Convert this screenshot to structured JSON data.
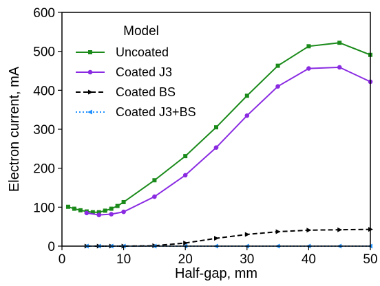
{
  "chart_data": {
    "type": "line",
    "xlabel": "Half-gap, mm",
    "ylabel": "Electron current, mA",
    "xlim": [
      0,
      50
    ],
    "ylim": [
      0,
      600
    ],
    "xticks": [
      "0",
      "10",
      "20",
      "30",
      "40",
      "50"
    ],
    "yticks": [
      "0",
      "100",
      "200",
      "300",
      "400",
      "500",
      "600"
    ],
    "grid": false,
    "legend": {
      "title": "Model",
      "placement": "top-left"
    },
    "series": [
      {
        "name": "Uncoated",
        "color": "#1a8a1a",
        "line_style": "solid",
        "marker": "square",
        "x": [
          1,
          2,
          3,
          4,
          5,
          6,
          7,
          8,
          9,
          10,
          15,
          20,
          25,
          30,
          35,
          40,
          45,
          50
        ],
        "y": [
          101,
          96,
          92,
          89,
          87,
          87,
          91,
          96,
          103,
          113,
          169,
          231,
          305,
          386,
          463,
          513,
          522,
          491
        ]
      },
      {
        "name": "Coated J3",
        "color": "#8a2be2",
        "line_style": "solid",
        "marker": "circle",
        "x": [
          4,
          6,
          8,
          10,
          15,
          20,
          25,
          30,
          35,
          40,
          45,
          50
        ],
        "y": [
          85,
          80,
          82,
          88,
          127,
          182,
          253,
          335,
          410,
          456,
          459,
          422
        ]
      },
      {
        "name": "Coated BS",
        "color": "#000000",
        "line_style": "dashed",
        "marker": "triangle-right",
        "x": [
          4,
          6,
          8,
          10,
          15,
          20,
          25,
          30,
          35,
          40,
          45,
          50
        ],
        "y": [
          0,
          0,
          0,
          0,
          1,
          8,
          20,
          30,
          37,
          41,
          42,
          43
        ]
      },
      {
        "name": "Coated J3+BS",
        "color": "#1e90ff",
        "line_style": "dotted",
        "marker": "triangle-left",
        "x": [
          4,
          6,
          8,
          10,
          15,
          20,
          25,
          30,
          35,
          40,
          45,
          50
        ],
        "y": [
          0,
          0,
          0,
          0,
          0,
          0,
          0,
          0,
          0,
          0,
          0,
          0
        ]
      }
    ]
  }
}
